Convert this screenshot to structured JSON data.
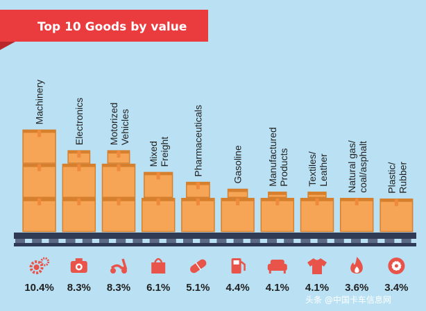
{
  "title": "Top 10 Goods by value",
  "watermark": "头条 @中国卡车信息网",
  "colors": {
    "background": "#b9e1f3",
    "banner": "#ea3b3e",
    "banner_dark": "#b9272a",
    "box": "#f6a556",
    "box_edge": "#d67f2c",
    "box_tape": "#ef8a3c",
    "pallet": "#2f3a55",
    "pallet_slot": "#5d6a86",
    "icon": "#e8534a",
    "text": "#1f1f1f"
  },
  "chart_data": {
    "type": "bar",
    "title": "Top 10 Goods by value",
    "categories": [
      "Machinery",
      "Electronics",
      "Motorized Vehicles",
      "Mixed Freight",
      "Pharmaceuticals",
      "Gasoline",
      "Manufactured Products",
      "Textiles/ Leather",
      "Natural gas/ coal/asphalt",
      "Plastic/ Rubber"
    ],
    "category_lines": [
      [
        "Machinery"
      ],
      [
        "Electronics"
      ],
      [
        "Motorized",
        "Vehicles"
      ],
      [
        "Mixed",
        "Freight"
      ],
      [
        "Pharmaceuticals"
      ],
      [
        "Gasoline"
      ],
      [
        "Manufactured",
        "Products"
      ],
      [
        "Textiles/",
        "Leather"
      ],
      [
        "Natural gas/",
        "coal/asphalt"
      ],
      [
        "Plastic/",
        "Rubber"
      ]
    ],
    "values": [
      10.4,
      8.3,
      8.3,
      6.1,
      5.1,
      4.4,
      4.1,
      4.1,
      3.6,
      3.4
    ],
    "value_labels": [
      "10.4%",
      "8.3%",
      "8.3%",
      "6.1%",
      "5.1%",
      "4.4%",
      "4.1%",
      "4.1%",
      "3.6%",
      "3.4%"
    ],
    "unit": "%",
    "icons": [
      "gears-icon",
      "camera-icon",
      "scooter-icon",
      "shopping-bag-icon",
      "pill-icon",
      "gas-pump-icon",
      "sofa-icon",
      "tshirt-icon",
      "flame-icon",
      "tire-icon"
    ]
  }
}
